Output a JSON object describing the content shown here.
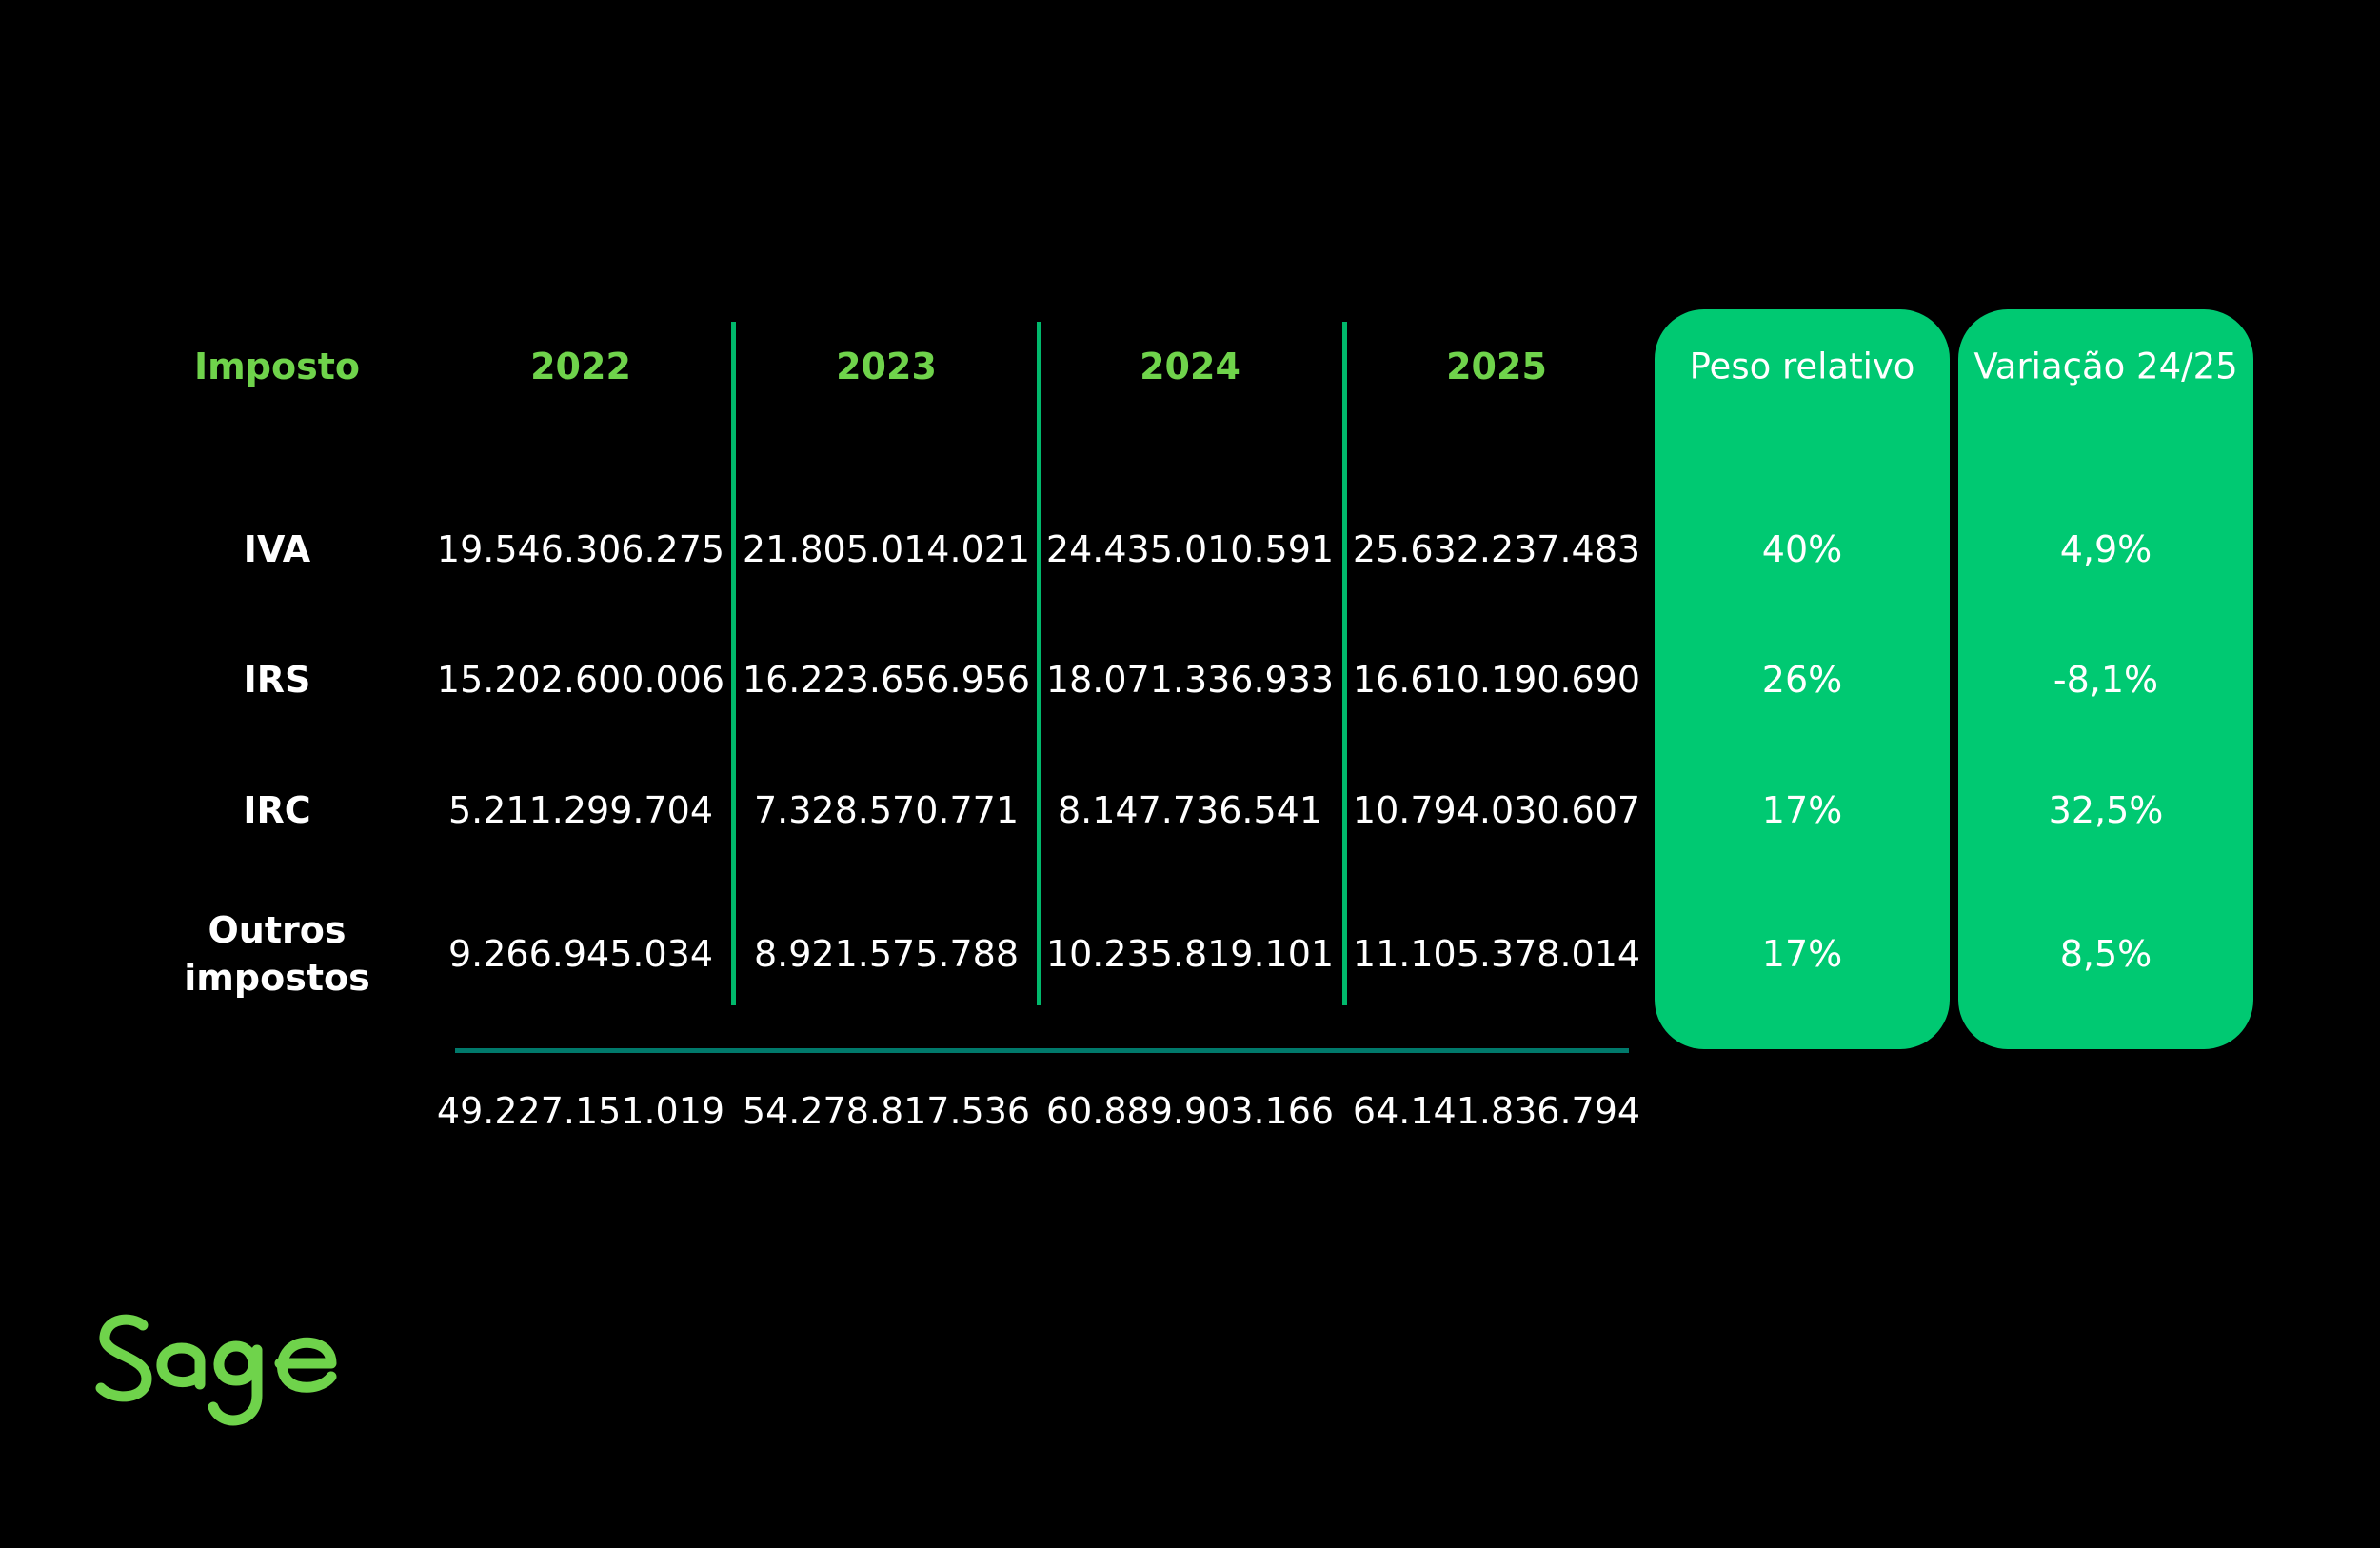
{
  "chart_data": {
    "type": "table",
    "header": {
      "label": "Imposto",
      "years": [
        "2022",
        "2023",
        "2024",
        "2025"
      ],
      "weight": "Peso relativo",
      "variation": "Variação 24/25"
    },
    "rows": [
      {
        "label": "IVA",
        "label_lines": [
          "IVA"
        ],
        "values": [
          "19.546.306.275",
          "21.805.014.021",
          "24.435.010.591",
          "25.632.237.483"
        ],
        "weight": "40%",
        "variation": "4,9%"
      },
      {
        "label": "IRS",
        "label_lines": [
          "IRS"
        ],
        "values": [
          "15.202.600.006",
          "16.223.656.956",
          "18.071.336.933",
          "16.610.190.690"
        ],
        "weight": "26%",
        "variation": "-8,1%"
      },
      {
        "label": "IRC",
        "label_lines": [
          "IRC"
        ],
        "values": [
          "5.211.299.704",
          "7.328.570.771",
          "8.147.736.541",
          "10.794.030.607"
        ],
        "weight": "17%",
        "variation": "32,5%"
      },
      {
        "label": "Outros impostos",
        "label_lines": [
          "Outros",
          "impostos"
        ],
        "values": [
          "9.266.945.034",
          "8.921.575.788",
          "10.235.819.101",
          "11.105.378.014"
        ],
        "weight": "17%",
        "variation": "8,5%"
      }
    ],
    "totals": [
      "49.227.151.019",
      "54.278.817.536",
      "60.889.903.166",
      "64.141.836.794"
    ]
  },
  "colors": {
    "background": "#000000",
    "header_green": "#6fd34b",
    "pill_green": "#00c972",
    "divider_green": "#00b86b",
    "total_line": "#00796b",
    "text": "#ffffff"
  },
  "logo": {
    "text": "Sage",
    "icon": "sage-logo-icon"
  }
}
